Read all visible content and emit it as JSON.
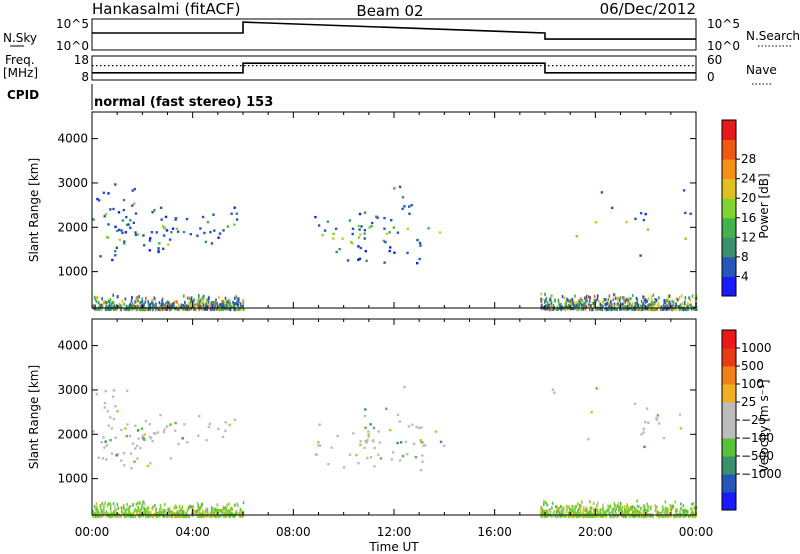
{
  "chart_data": {
    "type": "heatmap",
    "header": {
      "station": "Hankasalmi (fitACF)",
      "beam": "Beam 02",
      "date": "06/Dec/2012"
    },
    "top_panels": {
      "nsky_label": "N.Sky",
      "nsky_ticks": [
        "10^5",
        "10^0"
      ],
      "nsearch_label": "N.Search",
      "nsearch_ticks": [
        "10^5",
        "10^0"
      ],
      "freq_label_1": "Freq.",
      "freq_label_2": "[MHz]",
      "freq_ticks": [
        "18",
        "8"
      ],
      "nave_label": "Nave",
      "nave_ticks": [
        "60",
        "0"
      ],
      "cpid_label": "CPID",
      "cpid_text": "normal (fast stereo) 153",
      "nsky_level": {
        "x": [
          0,
          6,
          6,
          18,
          18,
          24
        ],
        "y": [
          0.55,
          0.55,
          0.9,
          0.55,
          0.35,
          0.35
        ]
      },
      "freq_level_dotted": 0.6,
      "nave_step": {
        "x": [
          0,
          6,
          6,
          18,
          18,
          24
        ],
        "y": [
          0.3,
          0.3,
          0.7,
          0.7,
          0.3,
          0.3
        ]
      }
    },
    "power_panel": {
      "ylabel": "Slant Range [km]",
      "yticks": [
        1000,
        2000,
        3000,
        4000
      ],
      "ylim": [
        180,
        4600
      ],
      "colorbar_label": "Power [dB]",
      "colorbar_ticks": [
        "4",
        "8",
        "12",
        "16",
        "20",
        "24",
        "28"
      ],
      "colorbar_colors": [
        "#1a1aff",
        "#2457b8",
        "#3a8f6f",
        "#44b24a",
        "#7fd42e",
        "#e0c020",
        "#f39018",
        "#ef5a12",
        "#e8181b"
      ]
    },
    "velocity_panel": {
      "ylabel": "Slant Range [km]",
      "yticks": [
        1000,
        2000,
        3000,
        4000
      ],
      "ylim": [
        180,
        4600
      ],
      "colorbar_label": "Velocity [m s⁻¹]",
      "colorbar_ticks": [
        "1000",
        "500",
        "100",
        "25",
        "−25",
        "−100",
        "−500",
        "−1000"
      ],
      "colorbar_colors": [
        "#1a1aff",
        "#2457b8",
        "#3a8f6f",
        "#5ac03a",
        "#bcbcbc",
        "#bcbcbc",
        "#f0b020",
        "#f08018",
        "#ea3a14",
        "#e8181b"
      ]
    },
    "xaxis": {
      "label": "Time UT",
      "ticks": [
        "00:00",
        "04:00",
        "08:00",
        "12:00",
        "16:00",
        "20:00",
        "00:00"
      ],
      "xlim": [
        0,
        24
      ]
    },
    "scatter_regions": [
      {
        "t0": 0.0,
        "t1": 1.8,
        "r0": 1800,
        "r1": 3050,
        "density": 0.7
      },
      {
        "t0": 0.2,
        "t1": 3.2,
        "r0": 1250,
        "r1": 2200,
        "density": 0.85
      },
      {
        "t0": 1.0,
        "t1": 5.8,
        "r0": 1650,
        "r1": 2500,
        "density": 0.65
      },
      {
        "t0": 8.8,
        "t1": 11.2,
        "r0": 1250,
        "r1": 2300,
        "density": 0.7
      },
      {
        "t0": 10.5,
        "t1": 13.2,
        "r0": 1200,
        "r1": 2650,
        "density": 0.8
      },
      {
        "t0": 11.8,
        "t1": 12.4,
        "r0": 2700,
        "r1": 3100,
        "density": 0.7
      },
      {
        "t0": 13.0,
        "t1": 14.2,
        "r0": 1700,
        "r1": 2200,
        "density": 0.45
      },
      {
        "t0": 21.6,
        "t1": 24.0,
        "r0": 2250,
        "r1": 2500,
        "density": 0.65
      },
      {
        "t0": 21.3,
        "t1": 22.2,
        "r0": 1200,
        "r1": 2900,
        "density": 0.2
      },
      {
        "t0": 18.0,
        "t1": 24.0,
        "r0": 1000,
        "r1": 3200,
        "density": 0.04
      }
    ],
    "ground_bands": [
      {
        "t0": 0.0,
        "t1": 6.0,
        "r0": 180,
        "r1": 520
      },
      {
        "t0": 17.8,
        "t1": 24.0,
        "r0": 180,
        "r1": 560
      }
    ]
  }
}
